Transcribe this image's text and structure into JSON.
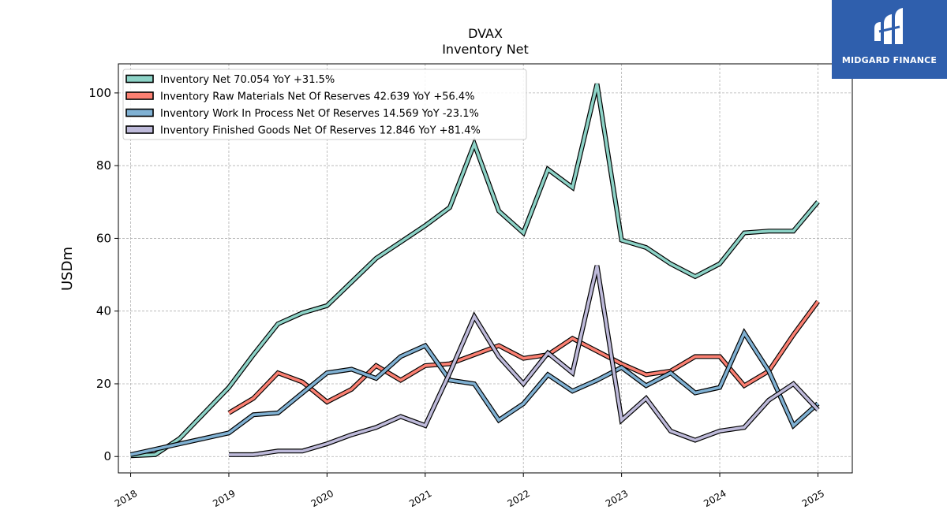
{
  "chart_data": {
    "type": "line",
    "title": "DVAX",
    "subtitle": "Inventory Net",
    "xlabel": "",
    "ylabel": "USDm",
    "xlim": [
      2017.875,
      2025.35
    ],
    "ylim": [
      -4.5,
      108
    ],
    "x_ticks": [
      2018,
      2019,
      2020,
      2021,
      2022,
      2023,
      2024,
      2025
    ],
    "x_tick_labels": [
      "2018",
      "2019",
      "2020",
      "2021",
      "2022",
      "2023",
      "2024",
      "2025"
    ],
    "y_ticks": [
      0,
      20,
      40,
      60,
      80,
      100
    ],
    "y_tick_labels": [
      "0",
      "20",
      "40",
      "60",
      "80",
      "100"
    ],
    "grid": true,
    "legend_position": "top-left",
    "series": [
      {
        "name": "Inventory Net",
        "legend_label": "Inventory Net  70.054 YoY +31.5%",
        "color": "#8dd3c7",
        "x": [
          2018.0,
          2018.25,
          2018.5,
          2018.75,
          2019.0,
          2019.25,
          2019.5,
          2019.75,
          2020.0,
          2020.25,
          2020.5,
          2020.75,
          2021.0,
          2021.25,
          2021.5,
          2021.75,
          2022.0,
          2022.25,
          2022.5,
          2022.75,
          2023.0,
          2023.25,
          2023.5,
          2023.75,
          2024.0,
          2024.25,
          2024.5,
          2024.75,
          2025.0
        ],
        "values": [
          0.2,
          0.5,
          5.0,
          12.0,
          19.0,
          28.0,
          36.5,
          39.5,
          41.5,
          48.0,
          54.5,
          59.0,
          63.5,
          68.5,
          86.0,
          67.5,
          61.5,
          79.0,
          74.0,
          102.5,
          59.5,
          57.5,
          53.0,
          49.5,
          53.0,
          61.5,
          62.0,
          62.0,
          70.054
        ]
      },
      {
        "name": "Inventory Raw Materials Net Of Reserves",
        "legend_label": "Inventory Raw Materials Net Of Reserves  42.639 YoY +56.4%",
        "color": "#fb8072",
        "x": [
          2019.0,
          2019.25,
          2019.5,
          2019.75,
          2020.0,
          2020.25,
          2020.5,
          2020.75,
          2021.0,
          2021.25,
          2021.5,
          2021.75,
          2022.0,
          2022.25,
          2022.5,
          2022.75,
          2023.0,
          2023.25,
          2023.5,
          2023.75,
          2024.0,
          2024.25,
          2024.5,
          2024.75,
          2025.0
        ],
        "values": [
          12.0,
          16.0,
          23.0,
          20.5,
          15.0,
          18.5,
          25.0,
          21.0,
          25.0,
          25.5,
          28.0,
          30.5,
          27.0,
          28.0,
          32.5,
          29.0,
          25.5,
          22.5,
          23.5,
          27.5,
          27.5,
          19.5,
          23.5,
          33.5,
          42.639
        ]
      },
      {
        "name": "Inventory Work In Process Net Of Reserves",
        "legend_label": "Inventory Work In Process Net Of Reserves  14.569 YoY -23.1%",
        "color": "#80b1d3",
        "x": [
          2018.0,
          2018.25,
          2018.5,
          2018.75,
          2019.0,
          2019.25,
          2019.5,
          2019.75,
          2020.0,
          2020.25,
          2020.5,
          2020.75,
          2021.0,
          2021.25,
          2021.5,
          2021.75,
          2022.0,
          2022.25,
          2022.5,
          2022.75,
          2023.0,
          2023.25,
          2023.5,
          2023.75,
          2024.0,
          2024.25,
          2024.5,
          2024.75,
          2025.0
        ],
        "values": [
          0.5,
          2.0,
          3.5,
          5.0,
          6.5,
          11.5,
          12.0,
          17.5,
          23.0,
          24.0,
          21.5,
          27.5,
          30.5,
          21.0,
          20.0,
          10.0,
          14.5,
          22.5,
          18.0,
          21.0,
          24.5,
          19.5,
          23.0,
          17.5,
          19.0,
          34.0,
          23.5,
          8.5,
          14.569
        ]
      },
      {
        "name": "Inventory Finished Goods Net Of Reserves",
        "legend_label": "Inventory Finished Goods Net Of Reserves  12.846 YoY +81.4%",
        "color": "#bebada",
        "x": [
          2019.0,
          2019.25,
          2019.5,
          2019.75,
          2020.0,
          2020.25,
          2020.5,
          2020.75,
          2021.0,
          2021.25,
          2021.5,
          2021.75,
          2022.0,
          2022.25,
          2022.5,
          2022.75,
          2023.0,
          2023.25,
          2023.5,
          2023.75,
          2024.0,
          2024.25,
          2024.5,
          2024.75,
          2025.0
        ],
        "values": [
          0.5,
          0.5,
          1.5,
          1.5,
          3.5,
          6.0,
          8.0,
          11.0,
          8.5,
          23.0,
          38.5,
          27.5,
          20.0,
          28.5,
          23.0,
          52.5,
          10.0,
          16.0,
          7.0,
          4.5,
          7.0,
          8.0,
          15.5,
          20.0,
          12.846
        ]
      }
    ]
  },
  "logo": {
    "text": "MIDGARD FINANCE",
    "background": "#2f5fad"
  }
}
